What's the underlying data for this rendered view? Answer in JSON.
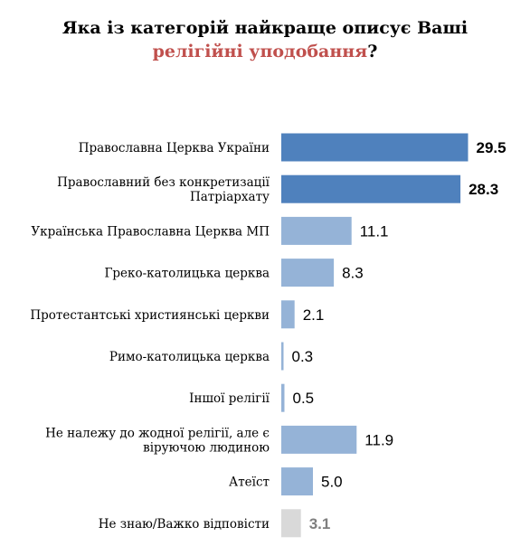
{
  "title": {
    "line1": "Яка із категорій найкраще описує Ваші",
    "line2_highlight": "релігійні уподобання",
    "line2_end": "?"
  },
  "colors": {
    "dark_bar": "#4f81bd",
    "light_bar": "#95b3d7",
    "grey_bar": "#d9d9d9",
    "title_highlight": "#c0504d"
  },
  "chart_data": {
    "type": "bar",
    "orientation": "horizontal",
    "title": "Яка із категорій найкраще описує Ваші релігійні уподобання?",
    "categories": [
      [
        "Православна Церква України"
      ],
      [
        "Православний без конкретизації",
        "Патріархату"
      ],
      [
        "Українська Православна Церква МП"
      ],
      [
        "Греко-католицька церква"
      ],
      [
        "Протестантські християнські церкви"
      ],
      [
        "Римо-католицька церква"
      ],
      [
        "Іншої релігії"
      ],
      [
        "Не належу до жодної релігії, але є",
        "віруючою людиною"
      ],
      [
        "Атеїст"
      ],
      [
        "Не знаю/Важко відповісти"
      ]
    ],
    "values": [
      29.5,
      28.3,
      11.1,
      8.3,
      2.1,
      0.3,
      0.5,
      11.9,
      5.0,
      3.1
    ],
    "value_labels": [
      "29.5",
      "28.3",
      "11.1",
      "8.3",
      "2.1",
      "0.3",
      "0.5",
      "11.9",
      "5.0",
      "3.1"
    ],
    "bar_styles": [
      "dark",
      "dark",
      "light",
      "light",
      "light",
      "light",
      "light",
      "light",
      "light",
      "grey"
    ],
    "xlim": [
      0,
      32
    ],
    "grid": false,
    "legend": "none"
  }
}
